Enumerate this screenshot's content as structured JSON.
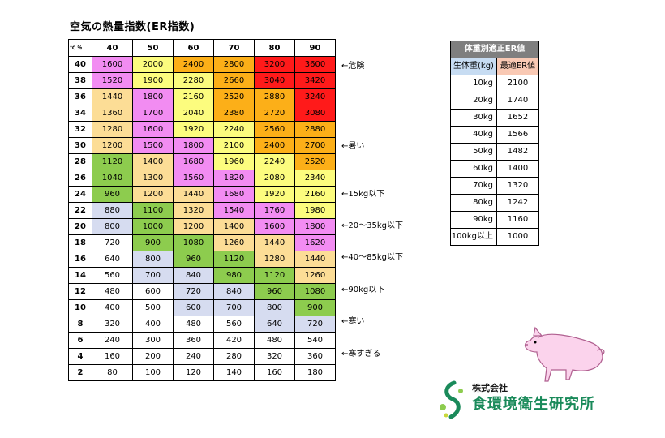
{
  "title": "空気の熱量指数(ER指数)",
  "table": {
    "corner": "℃ ％",
    "humidity": [
      "40",
      "50",
      "60",
      "70",
      "80",
      "90"
    ],
    "rows": [
      {
        "temp": "40",
        "values": [
          "1600",
          "2000",
          "2400",
          "2800",
          "3200",
          "3600"
        ],
        "colors": [
          "pink",
          "yellow",
          "orange",
          "orange",
          "red",
          "red"
        ]
      },
      {
        "temp": "38",
        "values": [
          "1520",
          "1900",
          "2280",
          "2660",
          "3040",
          "3420"
        ],
        "colors": [
          "pink",
          "yellow",
          "yellow",
          "orange",
          "red",
          "red"
        ]
      },
      {
        "temp": "36",
        "values": [
          "1440",
          "1800",
          "2160",
          "2520",
          "2880",
          "3240"
        ],
        "colors": [
          "peach",
          "pink",
          "yellow",
          "orange",
          "orange",
          "red"
        ]
      },
      {
        "temp": "34",
        "values": [
          "1360",
          "1700",
          "2040",
          "2380",
          "2720",
          "3080"
        ],
        "colors": [
          "peach",
          "pink",
          "yellow",
          "orange",
          "orange",
          "red"
        ]
      },
      {
        "temp": "32",
        "values": [
          "1280",
          "1600",
          "1920",
          "2240",
          "2560",
          "2880"
        ],
        "colors": [
          "peach",
          "pink",
          "yellow",
          "yellow",
          "orange",
          "orange"
        ]
      },
      {
        "temp": "30",
        "values": [
          "1200",
          "1500",
          "1800",
          "2100",
          "2400",
          "2700"
        ],
        "colors": [
          "peach",
          "pink",
          "pink",
          "yellow",
          "orange",
          "orange"
        ]
      },
      {
        "temp": "28",
        "values": [
          "1120",
          "1400",
          "1680",
          "1960",
          "2240",
          "2520"
        ],
        "colors": [
          "green",
          "peach",
          "pink",
          "yellow",
          "yellow",
          "orange"
        ]
      },
      {
        "temp": "26",
        "values": [
          "1040",
          "1300",
          "1560",
          "1820",
          "2080",
          "2340"
        ],
        "colors": [
          "green",
          "peach",
          "pink",
          "pink",
          "yellow",
          "yellow"
        ]
      },
      {
        "temp": "24",
        "values": [
          "960",
          "1200",
          "1440",
          "1680",
          "1920",
          "2160"
        ],
        "colors": [
          "green",
          "peach",
          "peach",
          "pink",
          "yellow",
          "yellow"
        ]
      },
      {
        "temp": "22",
        "values": [
          "880",
          "1100",
          "1320",
          "1540",
          "1760",
          "1980"
        ],
        "colors": [
          "blue",
          "green",
          "peach",
          "pink",
          "pink",
          "yellow"
        ]
      },
      {
        "temp": "20",
        "values": [
          "800",
          "1000",
          "1200",
          "1400",
          "1600",
          "1800"
        ],
        "colors": [
          "blue",
          "green",
          "peach",
          "peach",
          "pink",
          "pink"
        ]
      },
      {
        "temp": "18",
        "values": [
          "720",
          "900",
          "1080",
          "1260",
          "1440",
          "1620"
        ],
        "colors": [
          "white",
          "green",
          "green",
          "peach",
          "peach",
          "pink"
        ]
      },
      {
        "temp": "16",
        "values": [
          "640",
          "800",
          "960",
          "1120",
          "1280",
          "1440"
        ],
        "colors": [
          "white",
          "blue",
          "green",
          "green",
          "peach",
          "peach"
        ]
      },
      {
        "temp": "14",
        "values": [
          "560",
          "700",
          "840",
          "980",
          "1120",
          "1260"
        ],
        "colors": [
          "white",
          "blue",
          "blue",
          "green",
          "green",
          "peach"
        ]
      },
      {
        "temp": "12",
        "values": [
          "480",
          "600",
          "720",
          "840",
          "960",
          "1080"
        ],
        "colors": [
          "white",
          "white",
          "blue",
          "blue",
          "green",
          "green"
        ]
      },
      {
        "temp": "10",
        "values": [
          "400",
          "500",
          "600",
          "700",
          "800",
          "900"
        ],
        "colors": [
          "white",
          "white",
          "blue",
          "blue",
          "blue",
          "green"
        ]
      },
      {
        "temp": "8",
        "values": [
          "320",
          "400",
          "480",
          "560",
          "640",
          "720"
        ],
        "colors": [
          "white",
          "white",
          "white",
          "white",
          "blue",
          "blue"
        ]
      },
      {
        "temp": "6",
        "values": [
          "240",
          "300",
          "360",
          "420",
          "480",
          "540"
        ],
        "colors": [
          "white",
          "white",
          "white",
          "white",
          "white",
          "white"
        ]
      },
      {
        "temp": "4",
        "values": [
          "160",
          "200",
          "240",
          "280",
          "320",
          "360"
        ],
        "colors": [
          "white",
          "white",
          "white",
          "white",
          "white",
          "white"
        ]
      },
      {
        "temp": "2",
        "values": [
          "80",
          "100",
          "120",
          "140",
          "160",
          "180"
        ],
        "colors": [
          "white",
          "white",
          "white",
          "white",
          "white",
          "white"
        ]
      }
    ]
  },
  "colors": {
    "pink": "#f28cf2",
    "yellow": "#fcfc7e",
    "orange": "#fcaf18",
    "red": "#ff1a1a",
    "peach": "#fcdd96",
    "green": "#8dcc4e",
    "blue": "#d6dcf0",
    "white": "#ffffff"
  },
  "annotations": [
    {
      "row": 0,
      "text": "←危険"
    },
    {
      "row": 5,
      "text": "←暑い"
    },
    {
      "row": 8,
      "text": "←15kg以下"
    },
    {
      "row": 10,
      "text": "←20～35kg以下"
    },
    {
      "row": 12,
      "text": "←40～85kg以下"
    },
    {
      "row": 14,
      "text": "←90kg以下"
    },
    {
      "row": 16,
      "text": "←寒い"
    },
    {
      "row": 18,
      "text": "←寒すぎる"
    }
  ],
  "weight_table": {
    "title": "体重別適正ER値",
    "col1": "生体重(kg)",
    "col2": "最適ER値",
    "rows": [
      {
        "weight": "10kg",
        "er": "2100"
      },
      {
        "weight": "20kg",
        "er": "1740"
      },
      {
        "weight": "30kg",
        "er": "1652"
      },
      {
        "weight": "40kg",
        "er": "1566"
      },
      {
        "weight": "50kg",
        "er": "1482"
      },
      {
        "weight": "60kg",
        "er": "1400"
      },
      {
        "weight": "70kg",
        "er": "1320"
      },
      {
        "weight": "80kg",
        "er": "1242"
      },
      {
        "weight": "90kg",
        "er": "1160"
      },
      {
        "weight": "100kg以上",
        "er": "1000"
      }
    ]
  },
  "logo": {
    "small": "株式会社",
    "name": "食環境衛生研究所"
  }
}
